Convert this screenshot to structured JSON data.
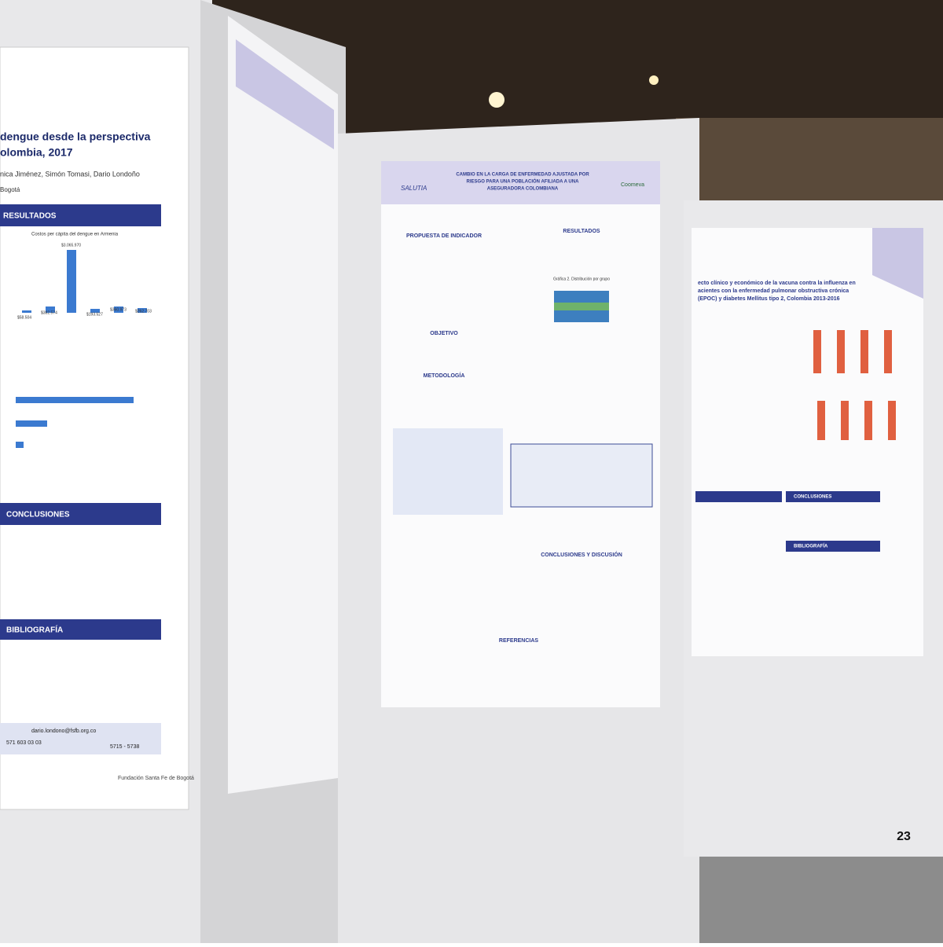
{
  "left_poster": {
    "title_line1": "dengue desde la perspectiva",
    "title_line2": "olombia, 2017",
    "authors": "nica Jiménez, Simón Tomasi, Dario Londoño",
    "city": "Bogotá",
    "results_heading": "RESULTADOS",
    "chart_title": "Costos per cápita del dengue en Armenia",
    "bar_labels": [
      "$58.504",
      "$382.574",
      "$3.065.970",
      "$193.527",
      "$360.973",
      "$262.703"
    ],
    "conclusions_heading": "CONCLUSIONES",
    "bibliography_heading": "BIBLIOGRAFÍA",
    "contact": "dario.londono@fsfb.org.co",
    "phone": "571 603 03 03",
    "ext": "5715 - 5738",
    "foundation": "Fundación Santa Fe de Bogotá"
  },
  "middle_poster": {
    "logo_left": "SALUTIA",
    "title": [
      "CAMBIO EN LA CARGA DE ENFERMEDAD AJUSTADA POR",
      "RIESGO PARA UNA POBLACIÓN AFILIADA A UNA",
      "ASEGURADORA COLOMBIANA"
    ],
    "logo_right": "Coomeva",
    "sections_left": [
      "PROPUESTA DE INDICADOR",
      "OBJETIVO",
      "METODOLOGÍA"
    ],
    "sections_right": [
      "RESULTADOS",
      "CONCLUSIONES Y DISCUSIÓN"
    ],
    "figure_caption": "Gráfica 2. Distribución por grupo",
    "references_heading": "REFERENCIAS"
  },
  "right_poster": {
    "title": [
      "ecto clínico y económico de la vacuna contra la influenza en",
      "acientes con la enfermedad pulmonar obstructiva crónica",
      "(EPOC) y diabetes Mellitus tipo 2, Colombia 2013-2016"
    ],
    "conclusions_heading": "CONCLUSIONES",
    "bibliography_heading": "BIBLIOGRAFÍA",
    "panel_number": "23"
  }
}
